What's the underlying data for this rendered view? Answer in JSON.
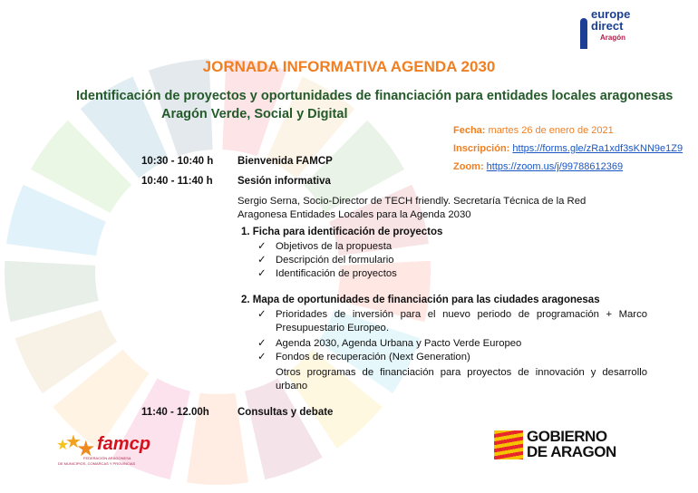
{
  "header": {
    "title": "JORNADA INFORMATIVA AGENDA 2030",
    "subtitle1": "Identificación de proyectos y oportunidades de financiación para entidades locales aragonesas",
    "subtitle2": "Aragón Verde, Social y Digital"
  },
  "logos": {
    "europe_direct": [
      "europe",
      "direct",
      "Aragón"
    ],
    "famcp": "famcp",
    "famcp_sub": [
      "FEDERACIÓN ARAGONESA",
      "DE MUNICIPIOS, COMARCAS Y PROVINCIAS"
    ],
    "gobierno": [
      "GOBIERNO",
      "DE ARAGON"
    ]
  },
  "info": {
    "fecha_label": "Fecha:",
    "fecha": " martes 26 de enero de 2021",
    "inscripcion_label": "Inscripción:",
    "inscripcion_url": "https://forms.gle/zRa1xdf3sKNN9e1Z9",
    "zoom_label": "Zoom:",
    "zoom_url": "https://zoom.us/j/99788612369"
  },
  "schedule": [
    {
      "time": "10:30 - 10:40 h",
      "title": "Bienvenida FAMCP"
    },
    {
      "time": "10:40 - 11:40 h",
      "title": "Sesión informativa"
    },
    {
      "time": "11:40 - 12.00h",
      "title": "Consultas y debate"
    }
  ],
  "speaker": "Sergio Serna, Socio-Director de TECH friendly. Secretaría Técnica de la Red Aragonesa Entidades Locales para la Agenda 2030",
  "sections": [
    {
      "title": "1.   Ficha para identificación de proyectos",
      "items": [
        "Objetivos de la propuesta",
        "Descripción del formulario",
        "Identificación de proyectos"
      ]
    },
    {
      "title": "2.   Mapa de oportunidades de financiación para las ciudades aragonesas",
      "items": [
        "Prioridades de inversión para el nuevo periodo de programación + Marco Presupuestario Europeo.",
        "Agenda 2030, Agenda Urbana y Pacto Verde Europeo",
        "Fondos de recuperación (Next Generation)",
        "Otros programas de financiación para proyectos de innovación y desarrollo urbano"
      ]
    }
  ],
  "check": "✓",
  "colors": {
    "title": "#f07f22",
    "subtitle": "#245a2a",
    "link": "#1a56c4"
  }
}
